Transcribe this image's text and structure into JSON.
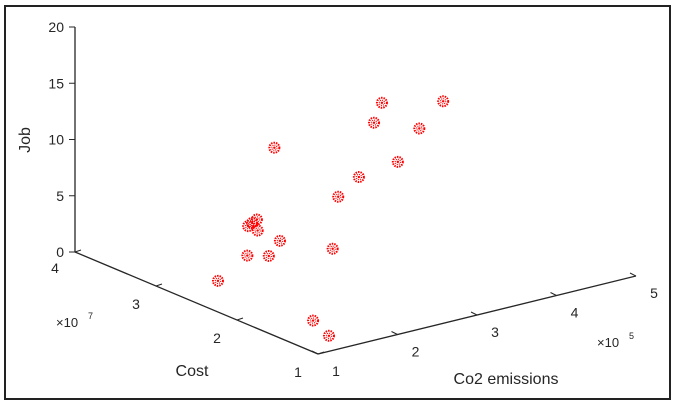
{
  "chart_data": {
    "type": "scatter3d",
    "title": "",
    "xlabel": "Co2 emissions",
    "ylabel": "Cost",
    "zlabel": "Job",
    "x_multiplier": "×10^5",
    "y_multiplier": "×10^7",
    "x_exponent_base": "×10",
    "x_exponent": "5",
    "y_exponent_base": "×10",
    "y_exponent": "7",
    "xlim": [
      100000,
      500000
    ],
    "ylim": [
      10000000,
      40000000
    ],
    "zlim": [
      0,
      20
    ],
    "x_ticks": [
      "1",
      "2",
      "3",
      "4",
      "5"
    ],
    "y_ticks": [
      "1",
      "2",
      "3",
      "4"
    ],
    "z_ticks": [
      "0",
      "5",
      "10",
      "15",
      "20"
    ],
    "grid": false,
    "marker_color": "#ff0000",
    "points": [
      {
        "co2": 211000,
        "cost": 13000000,
        "job": 19.5
      },
      {
        "co2": 288000,
        "cost": 13000000,
        "job": 18.3
      },
      {
        "co2": 201000,
        "cost": 13000000,
        "job": 17.9
      },
      {
        "co2": 258000,
        "cost": 13000000,
        "job": 16.4
      },
      {
        "co2": 231000,
        "cost": 13000000,
        "job": 13.9
      },
      {
        "co2": 182000,
        "cost": 13000000,
        "job": 13.4
      },
      {
        "co2": 156000,
        "cost": 13000000,
        "job": 12.1
      },
      {
        "co2": 149000,
        "cost": 13000000,
        "job": 7.6
      },
      {
        "co2": 104000,
        "cost": 11000000,
        "job": 2.6
      },
      {
        "co2": 124000,
        "cost": 11000000,
        "job": 0.9
      },
      {
        "co2": 147000,
        "cost": 20000000,
        "job": 14.5
      },
      {
        "co2": 125000,
        "cost": 20000000,
        "job": 8.5
      },
      {
        "co2": 119000,
        "cost": 20000000,
        "job": 8.3
      },
      {
        "co2": 114000,
        "cost": 20000000,
        "job": 8.1
      },
      {
        "co2": 126000,
        "cost": 20000000,
        "job": 7.5
      },
      {
        "co2": 154000,
        "cost": 20000000,
        "job": 6.1
      },
      {
        "co2": 113000,
        "cost": 20000000,
        "job": 5.5
      },
      {
        "co2": 140000,
        "cost": 20000000,
        "job": 5.0
      },
      {
        "co2": 127000,
        "cost": 25000000,
        "job": 1.5
      }
    ]
  }
}
